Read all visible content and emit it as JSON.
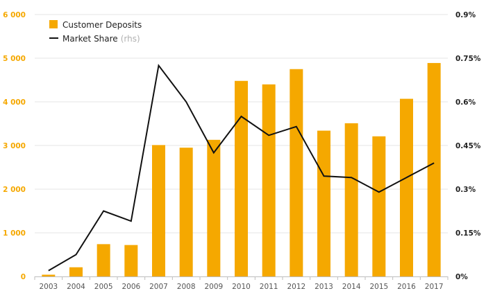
{
  "chart_data": {
    "type": "bar",
    "categories": [
      "2003",
      "2004",
      "2005",
      "2006",
      "2007",
      "2008",
      "2009",
      "2010",
      "2011",
      "2012",
      "2013",
      "2014",
      "2015",
      "2016",
      "2017"
    ],
    "series": [
      {
        "name": "Customer Deposits",
        "type": "bar",
        "axis": "left",
        "color": "#f5a800",
        "values": [
          40,
          210,
          740,
          720,
          3010,
          2950,
          3130,
          4480,
          4400,
          4750,
          3340,
          3510,
          3210,
          4070,
          4890
        ]
      },
      {
        "name": "Market Share",
        "name_suffix": "(rhs)",
        "type": "line",
        "axis": "right",
        "color": "#111111",
        "values": [
          0.0002,
          0.00075,
          0.00225,
          0.0019,
          0.00725,
          0.006,
          0.00425,
          0.0055,
          0.00485,
          0.00515,
          0.00345,
          0.0034,
          0.0029,
          0.0034,
          0.0039
        ]
      }
    ],
    "y_left": {
      "ylim": [
        0,
        6000
      ],
      "ticks": [
        0,
        1000,
        2000,
        3000,
        4000,
        5000,
        6000
      ],
      "tick_labels": [
        "0",
        "1 000",
        "2 000",
        "3 000",
        "4 000",
        "5 000",
        "6 000"
      ],
      "color": "#f5a800"
    },
    "y_right": {
      "ylim": [
        0,
        0.009
      ],
      "ticks": [
        0,
        0.0015,
        0.003,
        0.0045,
        0.006,
        0.0075,
        0.009
      ],
      "tick_labels": [
        "0%",
        "0.15%",
        "0.3%",
        "0.45%",
        "0.6%",
        "0.75%",
        "0.9%"
      ],
      "color": "#222222"
    },
    "grid": true,
    "legend": "top-left",
    "title": "",
    "xlabel": "",
    "ylabel": ""
  }
}
